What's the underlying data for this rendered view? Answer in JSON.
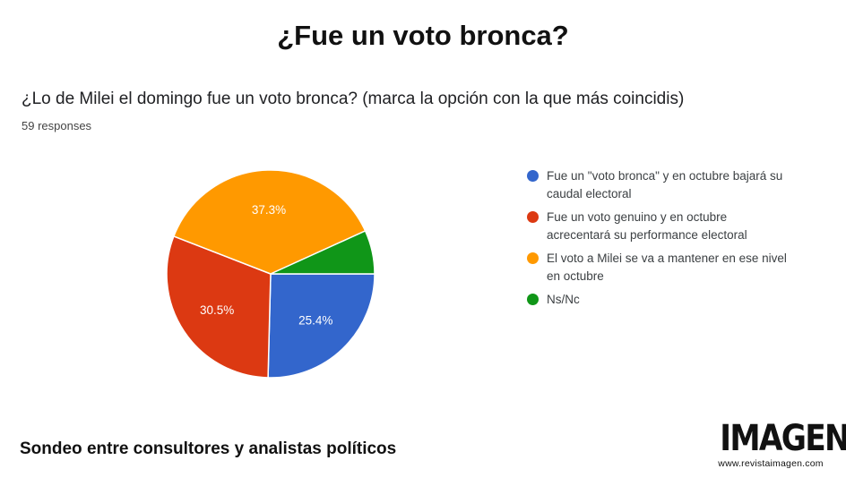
{
  "header": {
    "title": "¿Fue un voto bronca?"
  },
  "chart_data": {
    "type": "pie",
    "title": "¿Lo de Milei el domingo fue un voto bronca? (marca la opción con la que más coincidis)",
    "subtitle": "59 responses",
    "legend_position": "right",
    "slices": [
      {
        "label": "Fue un \"voto bronca\" y en octubre bajará su caudal electoral",
        "value": 25.4,
        "display": "25.4%",
        "color": "#3366cc"
      },
      {
        "label": "Fue un voto genuino y en octubre acrecentará su performance electoral",
        "value": 30.5,
        "display": "30.5%",
        "color": "#dc3912"
      },
      {
        "label": "El voto a Milei se va a mantener en ese nivel en octubre",
        "value": 37.3,
        "display": "37.3%",
        "color": "#ff9900"
      },
      {
        "label": "Ns/Nc",
        "value": 6.8,
        "display": "",
        "color": "#109618"
      }
    ]
  },
  "footer": {
    "caption": "Sondeo entre consultores y analistas políticos"
  },
  "brand": {
    "logo_text": "IMAGEN",
    "url": "www.revistaimagen.com"
  }
}
